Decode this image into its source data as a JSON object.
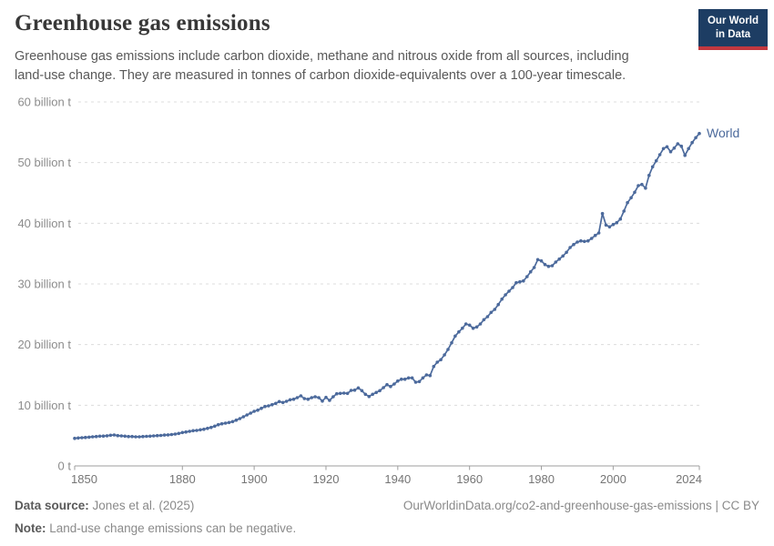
{
  "header": {
    "title": "Greenhouse gas emissions",
    "subtitle": "Greenhouse gas emissions include carbon dioxide, methane and nitrous oxide from all sources, including land-use change. They are measured in tonnes of carbon dioxide-equivalents over a 100-year timescale.",
    "logo": {
      "line1": "Our World",
      "line2": "in Data",
      "bg_color": "#1d3d63",
      "accent_color": "#c2383f"
    }
  },
  "chart_data": {
    "type": "line",
    "title": "Greenhouse gas emissions",
    "xlabel": "",
    "ylabel": "",
    "xlim": [
      1850,
      2024
    ],
    "ylim": [
      0,
      60
    ],
    "grid": "dashed-horizontal",
    "legend": "inline-end-label",
    "x_ticks": [
      1850,
      1880,
      1900,
      1920,
      1940,
      1960,
      1980,
      2000,
      2024
    ],
    "y_ticks": [
      {
        "value": 0,
        "label": "0 t"
      },
      {
        "value": 10,
        "label": "10 billion t"
      },
      {
        "value": 20,
        "label": "20 billion t"
      },
      {
        "value": 30,
        "label": "30 billion t"
      },
      {
        "value": 40,
        "label": "40 billion t"
      },
      {
        "value": 50,
        "label": "50 billion t"
      },
      {
        "value": 60,
        "label": "60 billion t"
      }
    ],
    "series": [
      {
        "name": "World",
        "color": "#4c6a9c",
        "unit": "billion t",
        "points": [
          [
            1850,
            4.55
          ],
          [
            1851,
            4.6
          ],
          [
            1852,
            4.65
          ],
          [
            1853,
            4.7
          ],
          [
            1854,
            4.74
          ],
          [
            1855,
            4.8
          ],
          [
            1856,
            4.85
          ],
          [
            1857,
            4.9
          ],
          [
            1858,
            4.92
          ],
          [
            1859,
            4.97
          ],
          [
            1860,
            5.05
          ],
          [
            1861,
            5.1
          ],
          [
            1862,
            5.0
          ],
          [
            1863,
            4.95
          ],
          [
            1864,
            4.9
          ],
          [
            1865,
            4.85
          ],
          [
            1866,
            4.85
          ],
          [
            1867,
            4.8
          ],
          [
            1868,
            4.8
          ],
          [
            1869,
            4.85
          ],
          [
            1870,
            4.88
          ],
          [
            1871,
            4.9
          ],
          [
            1872,
            4.95
          ],
          [
            1873,
            5.0
          ],
          [
            1874,
            5.02
          ],
          [
            1875,
            5.08
          ],
          [
            1876,
            5.12
          ],
          [
            1877,
            5.18
          ],
          [
            1878,
            5.25
          ],
          [
            1879,
            5.35
          ],
          [
            1880,
            5.5
          ],
          [
            1881,
            5.6
          ],
          [
            1882,
            5.7
          ],
          [
            1883,
            5.8
          ],
          [
            1884,
            5.85
          ],
          [
            1885,
            5.95
          ],
          [
            1886,
            6.05
          ],
          [
            1887,
            6.2
          ],
          [
            1888,
            6.35
          ],
          [
            1889,
            6.55
          ],
          [
            1890,
            6.8
          ],
          [
            1891,
            6.95
          ],
          [
            1892,
            7.05
          ],
          [
            1893,
            7.15
          ],
          [
            1894,
            7.3
          ],
          [
            1895,
            7.55
          ],
          [
            1896,
            7.8
          ],
          [
            1897,
            8.1
          ],
          [
            1898,
            8.4
          ],
          [
            1899,
            8.7
          ],
          [
            1900,
            9.0
          ],
          [
            1901,
            9.2
          ],
          [
            1902,
            9.5
          ],
          [
            1903,
            9.8
          ],
          [
            1904,
            9.9
          ],
          [
            1905,
            10.1
          ],
          [
            1906,
            10.3
          ],
          [
            1907,
            10.6
          ],
          [
            1908,
            10.45
          ],
          [
            1909,
            10.65
          ],
          [
            1910,
            10.9
          ],
          [
            1911,
            11.0
          ],
          [
            1912,
            11.25
          ],
          [
            1913,
            11.55
          ],
          [
            1914,
            11.1
          ],
          [
            1915,
            11.0
          ],
          [
            1916,
            11.25
          ],
          [
            1917,
            11.4
          ],
          [
            1918,
            11.25
          ],
          [
            1919,
            10.7
          ],
          [
            1920,
            11.3
          ],
          [
            1921,
            10.8
          ],
          [
            1922,
            11.4
          ],
          [
            1923,
            11.9
          ],
          [
            1924,
            11.95
          ],
          [
            1925,
            12.0
          ],
          [
            1926,
            11.95
          ],
          [
            1927,
            12.45
          ],
          [
            1928,
            12.5
          ],
          [
            1929,
            12.85
          ],
          [
            1930,
            12.4
          ],
          [
            1931,
            11.8
          ],
          [
            1932,
            11.45
          ],
          [
            1933,
            11.8
          ],
          [
            1934,
            12.1
          ],
          [
            1935,
            12.4
          ],
          [
            1936,
            12.9
          ],
          [
            1937,
            13.4
          ],
          [
            1938,
            13.1
          ],
          [
            1939,
            13.5
          ],
          [
            1940,
            14.0
          ],
          [
            1941,
            14.3
          ],
          [
            1942,
            14.3
          ],
          [
            1943,
            14.5
          ],
          [
            1944,
            14.5
          ],
          [
            1945,
            13.8
          ],
          [
            1946,
            13.9
          ],
          [
            1947,
            14.5
          ],
          [
            1948,
            15.0
          ],
          [
            1949,
            14.9
          ],
          [
            1950,
            16.4
          ],
          [
            1951,
            17.1
          ],
          [
            1952,
            17.5
          ],
          [
            1953,
            18.3
          ],
          [
            1954,
            19.2
          ],
          [
            1955,
            20.3
          ],
          [
            1956,
            21.4
          ],
          [
            1957,
            22.1
          ],
          [
            1958,
            22.7
          ],
          [
            1959,
            23.4
          ],
          [
            1960,
            23.2
          ],
          [
            1961,
            22.7
          ],
          [
            1962,
            22.9
          ],
          [
            1963,
            23.4
          ],
          [
            1964,
            24.1
          ],
          [
            1965,
            24.6
          ],
          [
            1966,
            25.3
          ],
          [
            1967,
            25.8
          ],
          [
            1968,
            26.6
          ],
          [
            1969,
            27.5
          ],
          [
            1970,
            28.2
          ],
          [
            1971,
            28.8
          ],
          [
            1972,
            29.4
          ],
          [
            1973,
            30.2
          ],
          [
            1974,
            30.35
          ],
          [
            1975,
            30.5
          ],
          [
            1976,
            31.2
          ],
          [
            1977,
            32.0
          ],
          [
            1978,
            32.7
          ],
          [
            1979,
            34.0
          ],
          [
            1980,
            33.8
          ],
          [
            1981,
            33.2
          ],
          [
            1982,
            32.9
          ],
          [
            1983,
            33.0
          ],
          [
            1984,
            33.6
          ],
          [
            1985,
            34.1
          ],
          [
            1986,
            34.6
          ],
          [
            1987,
            35.2
          ],
          [
            1988,
            36.0
          ],
          [
            1989,
            36.5
          ],
          [
            1990,
            36.9
          ],
          [
            1991,
            37.1
          ],
          [
            1992,
            37.0
          ],
          [
            1993,
            37.1
          ],
          [
            1994,
            37.5
          ],
          [
            1995,
            38.0
          ],
          [
            1996,
            38.4
          ],
          [
            1997,
            41.6
          ],
          [
            1998,
            39.7
          ],
          [
            1999,
            39.4
          ],
          [
            2000,
            39.8
          ],
          [
            2001,
            40.1
          ],
          [
            2002,
            40.7
          ],
          [
            2003,
            42.0
          ],
          [
            2004,
            43.4
          ],
          [
            2005,
            44.2
          ],
          [
            2006,
            45.1
          ],
          [
            2007,
            46.2
          ],
          [
            2008,
            46.4
          ],
          [
            2009,
            45.8
          ],
          [
            2010,
            47.9
          ],
          [
            2011,
            49.3
          ],
          [
            2012,
            50.3
          ],
          [
            2013,
            51.3
          ],
          [
            2014,
            52.3
          ],
          [
            2015,
            52.6
          ],
          [
            2016,
            51.8
          ],
          [
            2017,
            52.4
          ],
          [
            2018,
            53.1
          ],
          [
            2019,
            52.7
          ],
          [
            2020,
            51.2
          ],
          [
            2021,
            52.3
          ],
          [
            2022,
            53.3
          ],
          [
            2023,
            54.1
          ],
          [
            2024,
            54.8
          ]
        ]
      }
    ],
    "colors": {
      "gridline": "#dcdcdc",
      "axis": "#9e9e9e",
      "y_tick_label": "#8c8c8c",
      "x_tick_label": "#757575"
    }
  },
  "footer": {
    "source_label": "Data source:",
    "source_value": "Jones et al. (2025)",
    "url": "OurWorldinData.org/co2-and-greenhouse-gas-emissions | CC BY",
    "note_label": "Note:",
    "note_value": "Land-use change emissions can be negative."
  }
}
